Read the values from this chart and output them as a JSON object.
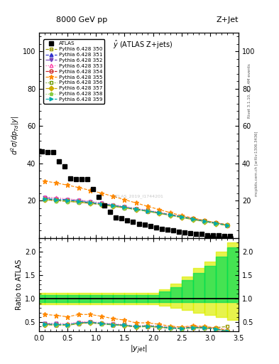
{
  "title_top": "8000 GeV pp",
  "title_right": "Z+Jet",
  "subtitle": "$\\hat{y}$ (ATLAS Z+jets)",
  "ylabel_main": "$d^2\\sigma/dp_{Td}|y|$",
  "ylabel_ratio": "Ratio to ATLAS",
  "xlabel": "$|y_{jet}|$",
  "rivet_text": "Rivet 3.1.10, ≥ 2.4M events",
  "arxiv_text": "mcplots.cern.ch [arXiv:1306.3436]",
  "ylim_main": [
    0,
    110
  ],
  "ylim_ratio": [
    0.3,
    2.3
  ],
  "xlim": [
    0.0,
    3.5
  ],
  "yticks_main": [
    20,
    40,
    60,
    80,
    100
  ],
  "yticks_ratio": [
    0.5,
    1.0,
    1.5,
    2.0
  ],
  "atlas_x": [
    0.05,
    0.15,
    0.25,
    0.35,
    0.45,
    0.55,
    0.65,
    0.75,
    0.85,
    0.95,
    1.05,
    1.15,
    1.25,
    1.35,
    1.45,
    1.55,
    1.65,
    1.75,
    1.85,
    1.95,
    2.05,
    2.15,
    2.25,
    2.35,
    2.45,
    2.55,
    2.65,
    2.75,
    2.85,
    2.95,
    3.05,
    3.15,
    3.25,
    3.35
  ],
  "atlas_y": [
    46.5,
    46.0,
    46.0,
    41.0,
    38.5,
    32.0,
    31.5,
    31.5,
    31.5,
    26.0,
    22.0,
    17.5,
    14.0,
    11.0,
    10.5,
    9.5,
    8.5,
    7.5,
    7.0,
    6.5,
    5.5,
    5.0,
    4.5,
    4.0,
    3.5,
    3.0,
    2.5,
    2.0,
    2.0,
    1.5,
    1.5,
    1.5,
    1.0,
    1.0
  ],
  "series": [
    {
      "label": "Pythia 6.428 350",
      "color": "#999900",
      "linestyle": "--",
      "marker": "s",
      "markerfacecolor": "none",
      "x": [
        0.1,
        0.3,
        0.5,
        0.7,
        0.9,
        1.1,
        1.3,
        1.5,
        1.7,
        1.9,
        2.1,
        2.3,
        2.5,
        2.7,
        2.9,
        3.1,
        3.3
      ],
      "y": [
        20.5,
        20.2,
        19.8,
        19.3,
        18.7,
        18.0,
        17.2,
        16.4,
        15.5,
        14.6,
        13.6,
        12.6,
        11.5,
        10.4,
        9.3,
        8.2,
        7.1
      ],
      "ratio": [
        0.44,
        0.44,
        0.43,
        0.47,
        0.49,
        0.46,
        0.44,
        0.43,
        0.4,
        0.42,
        0.4,
        0.38,
        0.37,
        0.39,
        0.39,
        0.38,
        0.4
      ]
    },
    {
      "label": "Pythia 6.428 351",
      "color": "#3333cc",
      "linestyle": "--",
      "marker": "^",
      "markerfacecolor": "#3333cc",
      "x": [
        0.1,
        0.3,
        0.5,
        0.7,
        0.9,
        1.1,
        1.3,
        1.5,
        1.7,
        1.9,
        2.1,
        2.3,
        2.5,
        2.7,
        2.9,
        3.1,
        3.3
      ],
      "y": [
        21.0,
        20.5,
        20.1,
        19.5,
        18.9,
        18.1,
        17.3,
        16.4,
        15.5,
        14.5,
        13.5,
        12.4,
        11.3,
        10.2,
        9.1,
        8.0,
        6.9
      ],
      "ratio": [
        0.45,
        0.44,
        0.43,
        0.47,
        0.49,
        0.46,
        0.44,
        0.43,
        0.4,
        0.41,
        0.39,
        0.37,
        0.36,
        0.38,
        0.38,
        0.35,
        0.3
      ]
    },
    {
      "label": "Pythia 6.428 352",
      "color": "#7744bb",
      "linestyle": "-.",
      "marker": "v",
      "markerfacecolor": "#7744bb",
      "x": [
        0.1,
        0.3,
        0.5,
        0.7,
        0.9,
        1.1,
        1.3,
        1.5,
        1.7,
        1.9,
        2.1,
        2.3,
        2.5,
        2.7,
        2.9,
        3.1,
        3.3
      ],
      "y": [
        21.5,
        21.0,
        20.5,
        20.0,
        19.3,
        18.4,
        17.5,
        16.5,
        15.6,
        14.6,
        13.5,
        12.4,
        11.2,
        10.1,
        9.0,
        7.9,
        6.8
      ],
      "ratio": [
        0.46,
        0.46,
        0.44,
        0.48,
        0.5,
        0.47,
        0.45,
        0.43,
        0.4,
        0.41,
        0.39,
        0.37,
        0.36,
        0.38,
        0.37,
        0.35,
        0.3
      ]
    },
    {
      "label": "Pythia 6.428 353",
      "color": "#ff44aa",
      "linestyle": ":",
      "marker": "^",
      "markerfacecolor": "none",
      "x": [
        0.1,
        0.3,
        0.5,
        0.7,
        0.9,
        1.1,
        1.3,
        1.5,
        1.7,
        1.9,
        2.1,
        2.3,
        2.5,
        2.7,
        2.9,
        3.1,
        3.3
      ],
      "y": [
        22.0,
        21.5,
        21.0,
        20.4,
        19.7,
        18.8,
        17.9,
        16.9,
        15.9,
        14.9,
        13.8,
        12.7,
        11.5,
        10.4,
        9.2,
        8.1,
        6.9
      ],
      "ratio": [
        0.47,
        0.47,
        0.46,
        0.5,
        0.51,
        0.48,
        0.46,
        0.44,
        0.41,
        0.43,
        0.41,
        0.39,
        0.37,
        0.41,
        0.38,
        0.38,
        0.33
      ]
    },
    {
      "label": "Pythia 6.428 354",
      "color": "#cc2222",
      "linestyle": "--",
      "marker": "o",
      "markerfacecolor": "none",
      "x": [
        0.1,
        0.3,
        0.5,
        0.7,
        0.9,
        1.1,
        1.3,
        1.5,
        1.7,
        1.9,
        2.1,
        2.3,
        2.5,
        2.7,
        2.9,
        3.1,
        3.3
      ],
      "y": [
        20.5,
        20.1,
        19.7,
        19.2,
        18.6,
        17.9,
        17.1,
        16.2,
        15.3,
        14.4,
        13.3,
        12.2,
        11.1,
        10.0,
        8.9,
        7.8,
        6.8
      ],
      "ratio": [
        0.44,
        0.44,
        0.43,
        0.47,
        0.48,
        0.46,
        0.44,
        0.42,
        0.39,
        0.41,
        0.39,
        0.37,
        0.36,
        0.38,
        0.37,
        0.35,
        0.3
      ]
    },
    {
      "label": "Pythia 6.428 355",
      "color": "#ff8800",
      "linestyle": "--",
      "marker": "*",
      "markerfacecolor": "#ff8800",
      "x": [
        0.1,
        0.3,
        0.5,
        0.7,
        0.9,
        1.1,
        1.3,
        1.5,
        1.7,
        1.9,
        2.1,
        2.3,
        2.5,
        2.7,
        2.9,
        3.1,
        3.3
      ],
      "y": [
        30.5,
        29.5,
        28.3,
        27.0,
        25.5,
        24.0,
        22.3,
        20.5,
        18.8,
        17.0,
        15.3,
        13.6,
        12.0,
        10.7,
        9.4,
        8.2,
        7.0
      ],
      "ratio": [
        0.66,
        0.64,
        0.61,
        0.66,
        0.66,
        0.62,
        0.57,
        0.54,
        0.48,
        0.48,
        0.45,
        0.41,
        0.39,
        0.42,
        0.4,
        0.37,
        0.32
      ]
    },
    {
      "label": "Pythia 6.428 356",
      "color": "#669900",
      "linestyle": ":",
      "marker": "s",
      "markerfacecolor": "none",
      "x": [
        0.1,
        0.3,
        0.5,
        0.7,
        0.9,
        1.1,
        1.3,
        1.5,
        1.7,
        1.9,
        2.1,
        2.3,
        2.5,
        2.7,
        2.9,
        3.1,
        3.3
      ],
      "y": [
        20.8,
        20.4,
        20.0,
        19.5,
        18.9,
        18.1,
        17.3,
        16.4,
        15.4,
        14.5,
        13.4,
        12.3,
        11.2,
        10.1,
        9.0,
        7.9,
        6.8
      ],
      "ratio": [
        0.45,
        0.44,
        0.43,
        0.47,
        0.49,
        0.46,
        0.44,
        0.43,
        0.4,
        0.41,
        0.39,
        0.37,
        0.36,
        0.38,
        0.38,
        0.35,
        0.3
      ]
    },
    {
      "label": "Pythia 6.428 357",
      "color": "#ccaa00",
      "linestyle": "-.",
      "marker": "D",
      "markerfacecolor": "#ccaa00",
      "x": [
        0.1,
        0.3,
        0.5,
        0.7,
        0.9,
        1.1,
        1.3,
        1.5,
        1.7,
        1.9,
        2.1,
        2.3,
        2.5,
        2.7,
        2.9,
        3.1,
        3.3
      ],
      "y": [
        20.5,
        20.1,
        19.7,
        19.2,
        18.6,
        17.8,
        17.0,
        16.1,
        15.2,
        14.3,
        13.2,
        12.1,
        11.0,
        9.9,
        8.8,
        7.7,
        6.7
      ],
      "ratio": [
        0.44,
        0.44,
        0.43,
        0.47,
        0.48,
        0.46,
        0.44,
        0.42,
        0.39,
        0.4,
        0.39,
        0.37,
        0.36,
        0.37,
        0.37,
        0.35,
        0.3
      ]
    },
    {
      "label": "Pythia 6.428 358",
      "color": "#88cc44",
      "linestyle": ":",
      "marker": "p",
      "markerfacecolor": "#88cc44",
      "x": [
        0.1,
        0.3,
        0.5,
        0.7,
        0.9,
        1.1,
        1.3,
        1.5,
        1.7,
        1.9,
        2.1,
        2.3,
        2.5,
        2.7,
        2.9,
        3.1,
        3.3
      ],
      "y": [
        20.3,
        19.9,
        19.5,
        19.0,
        18.4,
        17.7,
        16.9,
        16.0,
        15.1,
        14.2,
        13.1,
        12.0,
        10.9,
        9.8,
        8.7,
        7.7,
        6.6
      ],
      "ratio": [
        0.44,
        0.43,
        0.42,
        0.46,
        0.48,
        0.45,
        0.43,
        0.42,
        0.39,
        0.4,
        0.38,
        0.36,
        0.35,
        0.37,
        0.36,
        0.35,
        0.3
      ]
    },
    {
      "label": "Pythia 6.428 359",
      "color": "#00aaaa",
      "linestyle": "--",
      "marker": ">",
      "markerfacecolor": "#00aaaa",
      "x": [
        0.1,
        0.3,
        0.5,
        0.7,
        0.9,
        1.1,
        1.3,
        1.5,
        1.7,
        1.9,
        2.1,
        2.3,
        2.5,
        2.7,
        2.9,
        3.1,
        3.3
      ],
      "y": [
        21.0,
        20.6,
        20.2,
        19.7,
        19.0,
        18.2,
        17.4,
        16.5,
        15.5,
        14.5,
        13.5,
        12.4,
        11.3,
        10.1,
        9.0,
        7.9,
        6.8
      ],
      "ratio": [
        0.45,
        0.45,
        0.44,
        0.48,
        0.49,
        0.47,
        0.44,
        0.43,
        0.4,
        0.41,
        0.4,
        0.37,
        0.36,
        0.38,
        0.37,
        0.35,
        0.3
      ]
    }
  ],
  "band_inner_color": "#00dd55",
  "band_outer_color": "#ddee00",
  "band_bins_x": [
    0.0,
    0.1,
    0.3,
    0.5,
    0.7,
    0.9,
    1.1,
    1.3,
    1.5,
    1.7,
    1.9,
    2.1,
    2.3,
    2.5,
    2.7,
    2.9,
    3.1,
    3.3,
    3.5
  ],
  "band_inner_lo": [
    0.92,
    0.92,
    0.92,
    0.92,
    0.92,
    0.92,
    0.92,
    0.92,
    0.92,
    0.92,
    0.92,
    0.92,
    0.92,
    0.92,
    0.92,
    0.92,
    0.92,
    0.92
  ],
  "band_inner_hi": [
    1.08,
    1.08,
    1.08,
    1.08,
    1.08,
    1.08,
    1.08,
    1.08,
    1.08,
    1.08,
    1.08,
    1.15,
    1.25,
    1.4,
    1.55,
    1.7,
    1.9,
    2.1
  ],
  "band_outer_lo": [
    0.88,
    0.88,
    0.88,
    0.88,
    0.88,
    0.88,
    0.88,
    0.88,
    0.88,
    0.88,
    0.88,
    0.85,
    0.8,
    0.75,
    0.7,
    0.65,
    0.6,
    0.55
  ],
  "band_outer_hi": [
    1.12,
    1.12,
    1.12,
    1.12,
    1.12,
    1.12,
    1.12,
    1.12,
    1.12,
    1.12,
    1.12,
    1.2,
    1.32,
    1.48,
    1.65,
    1.8,
    2.0,
    2.2
  ]
}
